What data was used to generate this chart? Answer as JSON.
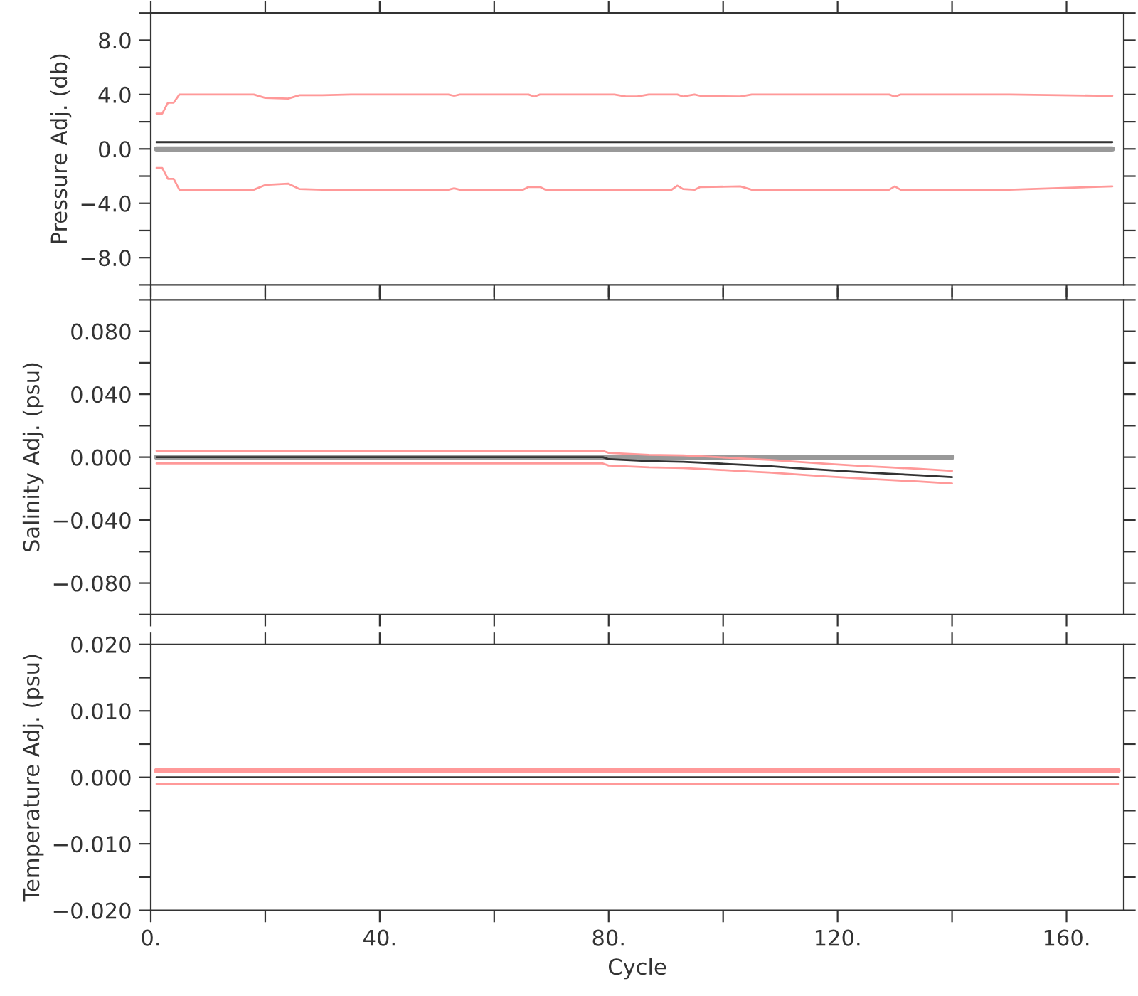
{
  "chart_data": [
    {
      "type": "line",
      "ylabel": "Pressure Adj. (db)",
      "xlim": [
        0,
        170
      ],
      "ylim": [
        -10,
        10
      ],
      "tick_labels": "y",
      "grid": false,
      "xticks": [
        {
          "value": 0,
          "label": null
        },
        {
          "value": 20,
          "label": null
        },
        {
          "value": 40,
          "label": null
        },
        {
          "value": 60,
          "label": null
        },
        {
          "value": 80,
          "label": null
        },
        {
          "value": 100,
          "label": null
        },
        {
          "value": 120,
          "label": null
        },
        {
          "value": 140,
          "label": null
        },
        {
          "value": 160,
          "label": null
        }
      ],
      "yticks": [
        {
          "value": -10,
          "label": null
        },
        {
          "value": -8,
          "label": "−8.0"
        },
        {
          "value": -6,
          "label": null
        },
        {
          "value": -4,
          "label": "−4.0"
        },
        {
          "value": -2,
          "label": null
        },
        {
          "value": 0,
          "label": "0.0"
        },
        {
          "value": 2,
          "label": null
        },
        {
          "value": 4,
          "label": "4.0"
        },
        {
          "value": 6,
          "label": null
        },
        {
          "value": 8,
          "label": "8.0"
        },
        {
          "value": 10,
          "label": null
        }
      ],
      "series": [
        {
          "color": "#999999",
          "x": [
            1,
            168
          ],
          "values": [
            0,
            0
          ]
        },
        {
          "color": "#333333",
          "x": [
            1,
            168
          ],
          "values": [
            0.5,
            0.5
          ]
        },
        {
          "color": "#ff9999",
          "x": [
            1,
            2,
            3,
            4,
            5,
            18,
            20,
            24,
            26,
            30,
            35,
            52,
            53,
            54,
            66,
            67,
            68,
            81,
            83,
            85,
            87,
            92,
            93,
            95,
            96,
            103,
            105,
            129,
            130,
            131,
            150,
            168
          ],
          "values": [
            2.6,
            2.6,
            3.4,
            3.4,
            4.0,
            4.0,
            3.75,
            3.7,
            3.95,
            3.95,
            4.0,
            4.0,
            3.9,
            4.0,
            4.0,
            3.85,
            4.0,
            4.0,
            3.85,
            3.85,
            4.0,
            4.0,
            3.85,
            4.0,
            3.9,
            3.85,
            4.0,
            4.0,
            3.85,
            4.0,
            4.0,
            3.9
          ]
        },
        {
          "color": "#ff9999",
          "x": [
            1,
            2,
            3,
            4,
            5,
            18,
            20,
            24,
            26,
            30,
            52,
            53,
            54,
            65,
            66,
            68,
            69,
            91,
            92,
            93,
            95,
            96,
            103,
            105,
            129,
            130,
            131,
            150,
            168
          ],
          "values": [
            -1.4,
            -1.4,
            -2.2,
            -2.2,
            -3.0,
            -3.0,
            -2.65,
            -2.55,
            -2.95,
            -3.0,
            -3.0,
            -2.9,
            -3.0,
            -3.0,
            -2.8,
            -2.8,
            -3.0,
            -3.0,
            -2.7,
            -2.95,
            -3.0,
            -2.8,
            -2.75,
            -3.0,
            -3.0,
            -2.75,
            -3.0,
            -3.0,
            -2.75
          ]
        }
      ]
    },
    {
      "type": "line",
      "ylabel": "Salinity Adj. (psu)",
      "xlim": [
        0,
        170
      ],
      "ylim": [
        -0.1,
        0.1
      ],
      "tick_labels": "y",
      "grid": false,
      "xticks": [
        {
          "value": 0,
          "label": null
        },
        {
          "value": 20,
          "label": null
        },
        {
          "value": 40,
          "label": null
        },
        {
          "value": 60,
          "label": null
        },
        {
          "value": 80,
          "label": null
        },
        {
          "value": 100,
          "label": null
        },
        {
          "value": 120,
          "label": null
        },
        {
          "value": 140,
          "label": null
        },
        {
          "value": 160,
          "label": null
        }
      ],
      "yticks": [
        {
          "value": -0.1,
          "label": null
        },
        {
          "value": -0.08,
          "label": "−0.080"
        },
        {
          "value": -0.06,
          "label": null
        },
        {
          "value": -0.04,
          "label": "−0.040"
        },
        {
          "value": -0.02,
          "label": null
        },
        {
          "value": 0,
          "label": "0.000"
        },
        {
          "value": 0.02,
          "label": null
        },
        {
          "value": 0.04,
          "label": "0.040"
        },
        {
          "value": 0.06,
          "label": null
        },
        {
          "value": 0.08,
          "label": "0.080"
        },
        {
          "value": 0.1,
          "label": null
        }
      ],
      "series": [
        {
          "color": "#999999",
          "x": [
            1,
            140
          ],
          "values": [
            0,
            0
          ]
        },
        {
          "color": "#ff9999",
          "x": [
            1,
            79,
            80,
            87,
            93,
            98,
            103,
            108,
            113,
            118,
            124,
            129,
            134,
            140
          ],
          "values": [
            0.004,
            0.004,
            0.0027,
            0.0015,
            0.0011,
            0.0002,
            -0.0008,
            -0.0017,
            -0.003,
            -0.0042,
            -0.0055,
            -0.0065,
            -0.0074,
            -0.0087
          ]
        },
        {
          "color": "#333333",
          "x": [
            1,
            79,
            80,
            87,
            93,
            98,
            103,
            108,
            113,
            118,
            124,
            129,
            134,
            140
          ],
          "values": [
            0,
            0,
            -0.0013,
            -0.0025,
            -0.0029,
            -0.0038,
            -0.0048,
            -0.0057,
            -0.007,
            -0.0082,
            -0.0095,
            -0.0105,
            -0.0114,
            -0.0127
          ]
        },
        {
          "color": "#ff9999",
          "x": [
            1,
            79,
            80,
            87,
            93,
            98,
            103,
            108,
            113,
            118,
            124,
            129,
            134,
            140
          ],
          "values": [
            -0.004,
            -0.004,
            -0.0053,
            -0.0065,
            -0.0069,
            -0.0078,
            -0.0088,
            -0.0097,
            -0.011,
            -0.0122,
            -0.0135,
            -0.0145,
            -0.0154,
            -0.0167
          ]
        }
      ]
    },
    {
      "type": "line",
      "ylabel": "Temperature Adj. (psu)",
      "xlabel": "Cycle",
      "xlim": [
        0,
        170
      ],
      "ylim": [
        -0.02,
        0.02
      ],
      "grid": false,
      "xticks": [
        {
          "value": 0,
          "label": "0."
        },
        {
          "value": 20,
          "label": null
        },
        {
          "value": 40,
          "label": "40."
        },
        {
          "value": 60,
          "label": null
        },
        {
          "value": 80,
          "label": "80."
        },
        {
          "value": 100,
          "label": null
        },
        {
          "value": 120,
          "label": "120."
        },
        {
          "value": 140,
          "label": null
        },
        {
          "value": 160,
          "label": "160."
        }
      ],
      "yticks": [
        {
          "value": -0.02,
          "label": "−0.020"
        },
        {
          "value": -0.015,
          "label": null
        },
        {
          "value": -0.01,
          "label": "−0.010"
        },
        {
          "value": -0.005,
          "label": null
        },
        {
          "value": 0,
          "label": "0.000"
        },
        {
          "value": 0.005,
          "label": null
        },
        {
          "value": 0.01,
          "label": "0.010"
        },
        {
          "value": 0.015,
          "label": null
        },
        {
          "value": 0.02,
          "label": "0.020"
        }
      ],
      "series": [
        {
          "color": "#ff9999",
          "x": [
            1,
            169
          ],
          "values": [
            0.001,
            0.001
          ]
        },
        {
          "color": "#333333",
          "x": [
            1,
            169
          ],
          "values": [
            0,
            0
          ]
        },
        {
          "color": "#ff9999",
          "x": [
            1,
            169
          ],
          "values": [
            -0.001,
            -0.001
          ]
        }
      ]
    }
  ]
}
